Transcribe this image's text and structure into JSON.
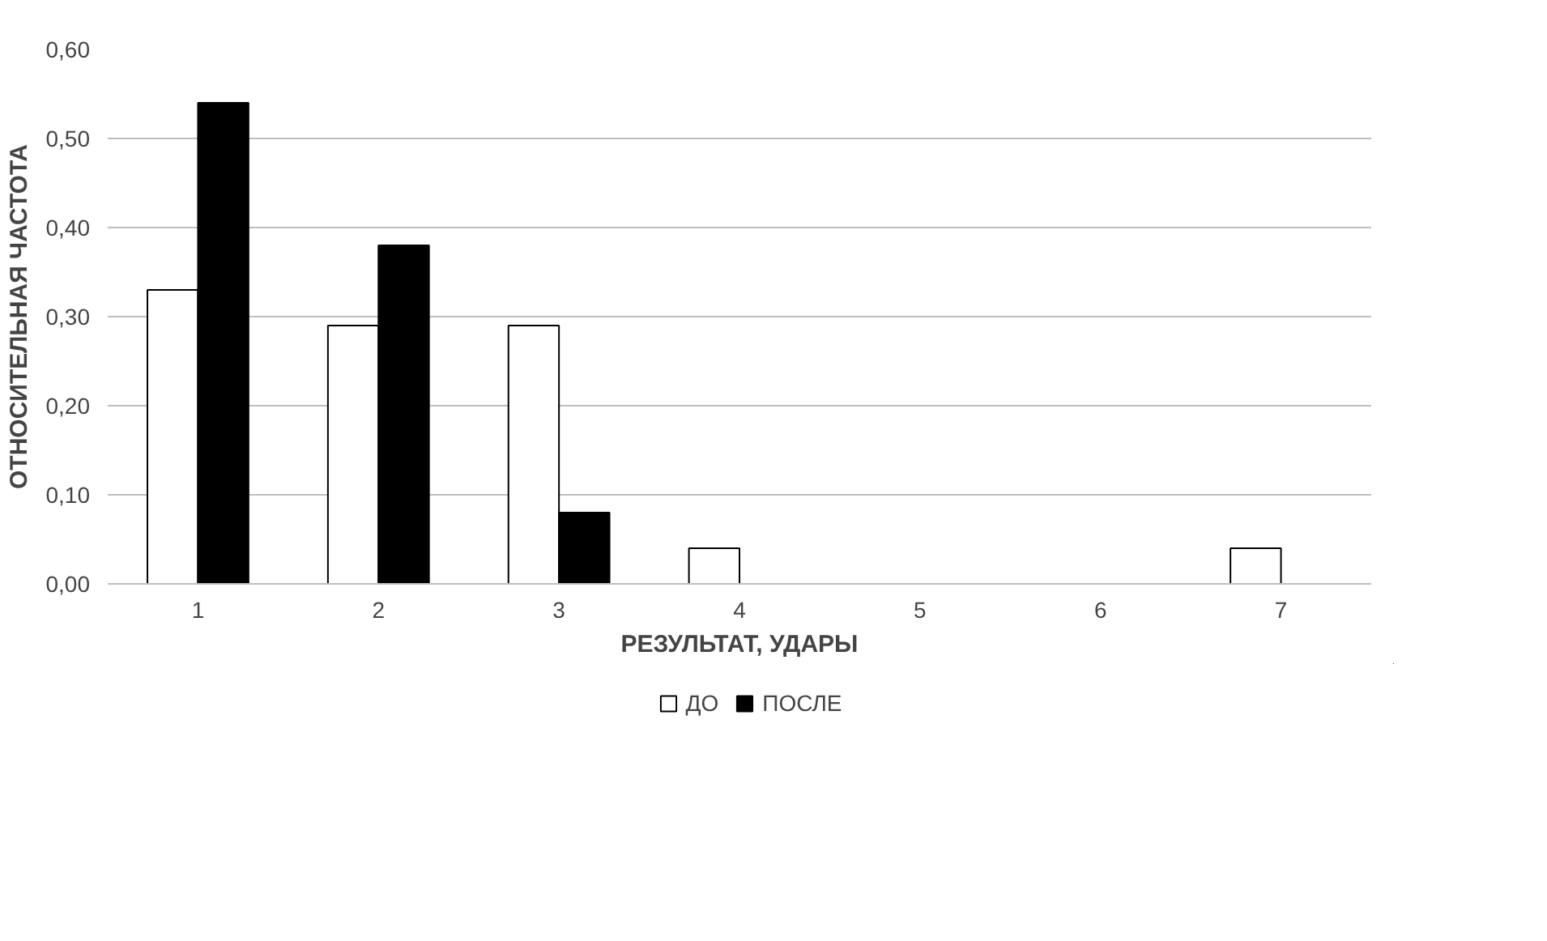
{
  "chart_data": {
    "type": "bar",
    "xlabel": "РЕЗУЛЬТАТ, УДАРЫ",
    "ylabel": "ОТНОСИТЕЛЬНАЯ ЧАСТОТА",
    "categories": [
      "1",
      "2",
      "3",
      "4",
      "5",
      "6",
      "7"
    ],
    "series": [
      {
        "name": "ДО",
        "color": "#ffffff",
        "values": [
          0.33,
          0.29,
          0.29,
          0.04,
          0,
          0,
          0.04
        ]
      },
      {
        "name": "ПОСЛЕ",
        "color": "#000000",
        "values": [
          0.54,
          0.38,
          0.08,
          0,
          0,
          0,
          0
        ]
      }
    ],
    "ylim": [
      0,
      0.6
    ],
    "yticks": [
      {
        "value": 0,
        "label": "0,00"
      },
      {
        "value": 0.1,
        "label": "0,10"
      },
      {
        "value": 0.2,
        "label": "0,20"
      },
      {
        "value": 0.3,
        "label": "0,30"
      },
      {
        "value": 0.4,
        "label": "0,40"
      },
      {
        "value": 0.5,
        "label": "0,50"
      },
      {
        "value": 0.6,
        "label": "0,60"
      }
    ],
    "grid": "y",
    "legend": "bottom"
  }
}
